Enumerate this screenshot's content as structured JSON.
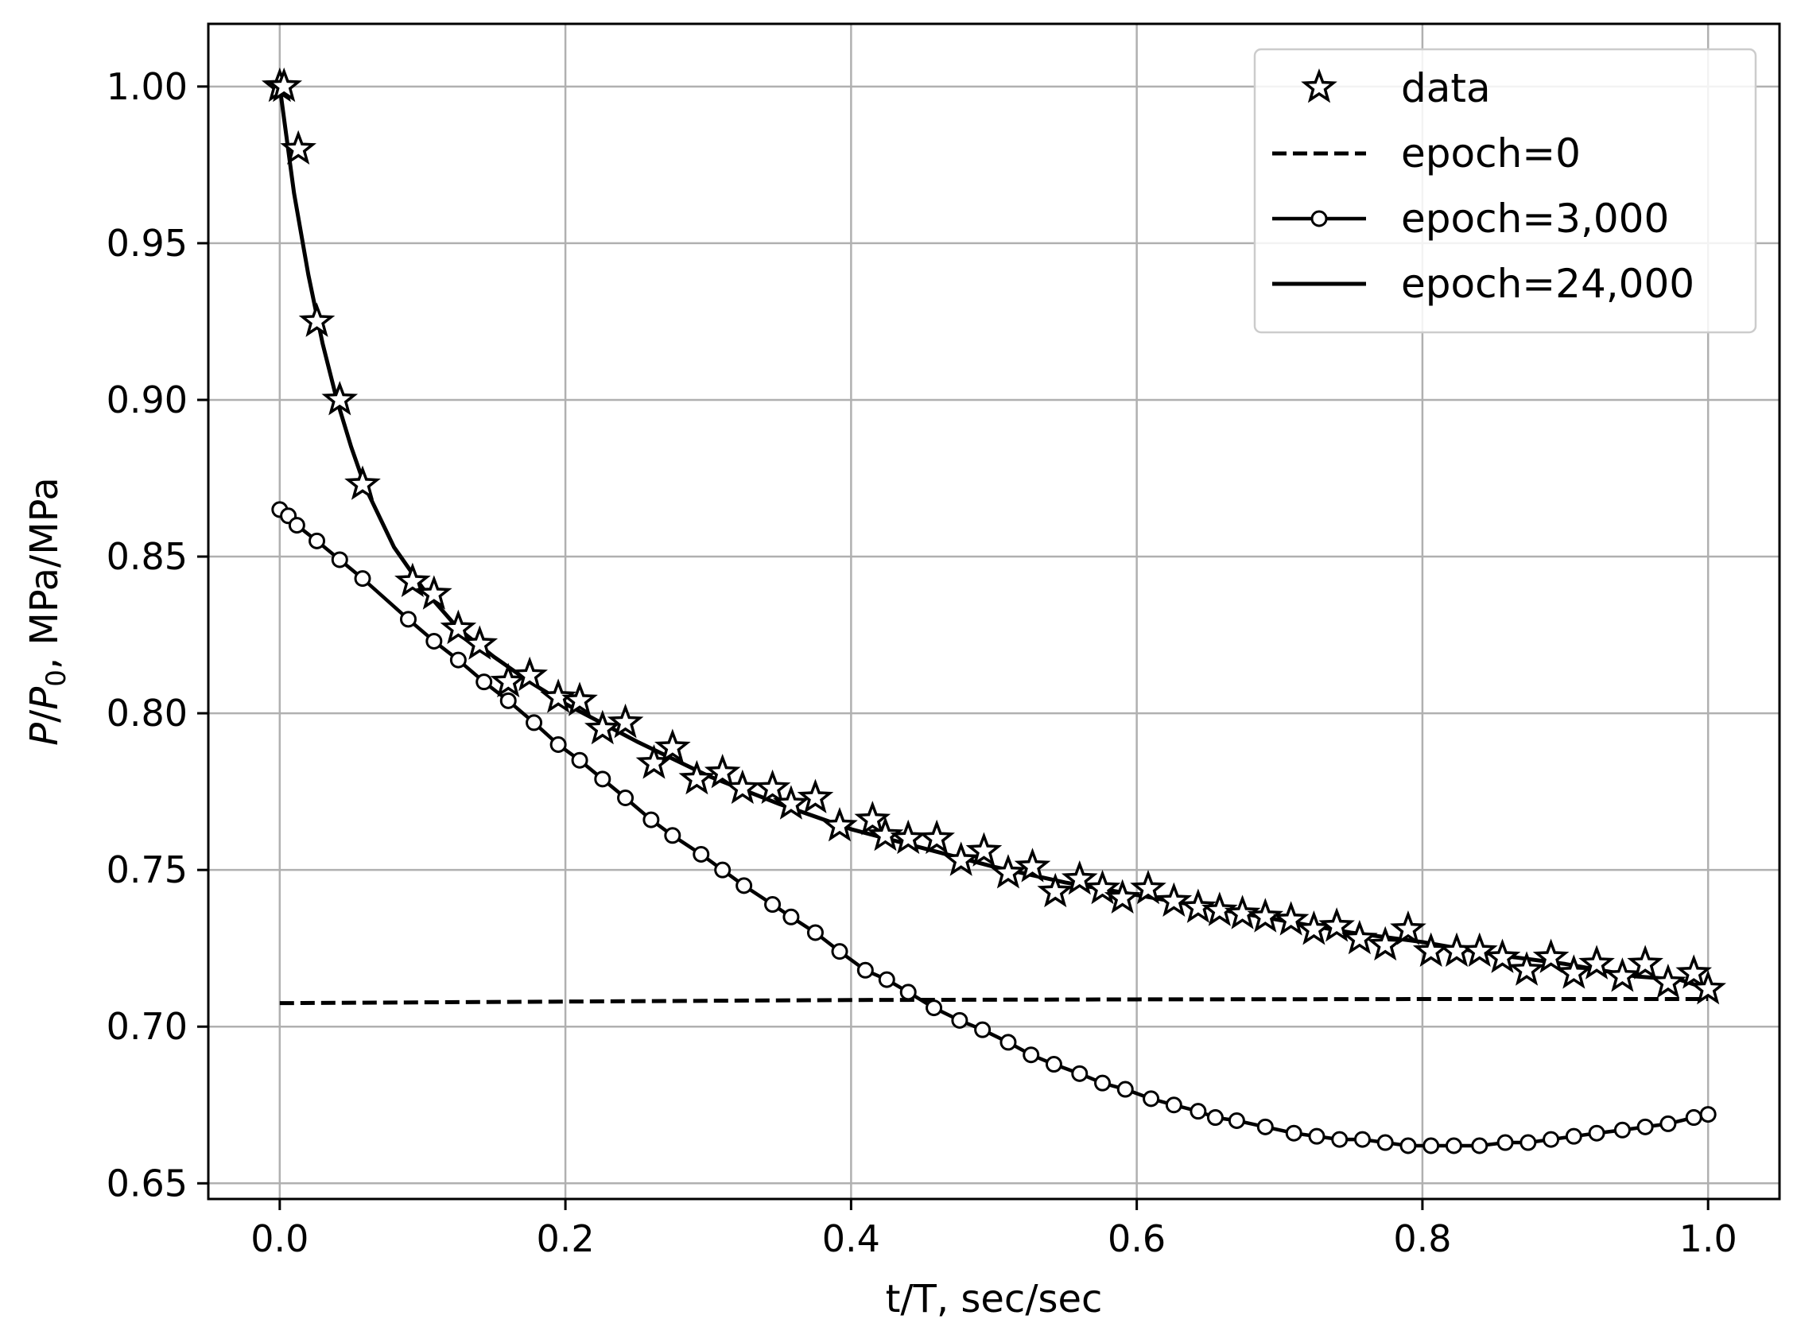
{
  "chart_data": {
    "type": "line",
    "title": "",
    "xlabel": "t/T, sec/sec",
    "ylabel": {
      "var": "P",
      "sep": "/",
      "den_var": "P",
      "den_sub": "0",
      "rest": ", MPa/MPa"
    },
    "xlim": [
      -0.05,
      1.05
    ],
    "ylim": [
      0.645,
      1.02
    ],
    "x_ticks": [
      0.0,
      0.2,
      0.4,
      0.6,
      0.8,
      1.0
    ],
    "x_tick_labels": [
      "0.0",
      "0.2",
      "0.4",
      "0.6",
      "0.8",
      "1.0"
    ],
    "y_ticks": [
      0.65,
      0.7,
      0.75,
      0.8,
      0.85,
      0.9,
      0.95,
      1.0
    ],
    "y_tick_labels": [
      "0.65",
      "0.70",
      "0.75",
      "0.80",
      "0.85",
      "0.90",
      "0.95",
      "1.00"
    ],
    "grid": true,
    "legend_position": "top-right",
    "series": [
      {
        "name": "data",
        "style": "markers",
        "marker": "star",
        "x": [
          0.0,
          0.003,
          0.013,
          0.026,
          0.042,
          0.058,
          0.093,
          0.108,
          0.125,
          0.14,
          0.16,
          0.175,
          0.195,
          0.21,
          0.226,
          0.242,
          0.262,
          0.275,
          0.292,
          0.31,
          0.324,
          0.345,
          0.358,
          0.375,
          0.392,
          0.415,
          0.424,
          0.44,
          0.46,
          0.477,
          0.493,
          0.51,
          0.527,
          0.543,
          0.56,
          0.576,
          0.59,
          0.608,
          0.626,
          0.643,
          0.658,
          0.674,
          0.69,
          0.708,
          0.724,
          0.74,
          0.756,
          0.774,
          0.79,
          0.806,
          0.824,
          0.84,
          0.856,
          0.873,
          0.89,
          0.906,
          0.922,
          0.94,
          0.956,
          0.972,
          0.99,
          1.0
        ],
        "y": [
          1.0,
          1.0,
          0.98,
          0.925,
          0.9,
          0.873,
          0.842,
          0.838,
          0.827,
          0.822,
          0.81,
          0.812,
          0.805,
          0.804,
          0.795,
          0.797,
          0.784,
          0.789,
          0.779,
          0.781,
          0.776,
          0.776,
          0.771,
          0.773,
          0.764,
          0.766,
          0.761,
          0.76,
          0.76,
          0.753,
          0.756,
          0.749,
          0.751,
          0.743,
          0.747,
          0.744,
          0.741,
          0.744,
          0.74,
          0.738,
          0.737,
          0.736,
          0.735,
          0.734,
          0.731,
          0.732,
          0.728,
          0.726,
          0.731,
          0.724,
          0.724,
          0.724,
          0.722,
          0.718,
          0.722,
          0.717,
          0.72,
          0.716,
          0.72,
          0.714,
          0.717,
          0.712
        ]
      },
      {
        "name": "epoch=0",
        "style": "dashed",
        "x": [
          0.0,
          0.2,
          0.4,
          0.6,
          0.8,
          1.0
        ],
        "y": [
          0.7075,
          0.708,
          0.7085,
          0.7087,
          0.7088,
          0.7088
        ]
      },
      {
        "name": "epoch=3,000",
        "style": "line-circles",
        "x": [
          0.0,
          0.006,
          0.012,
          0.026,
          0.042,
          0.058,
          0.09,
          0.108,
          0.125,
          0.143,
          0.16,
          0.178,
          0.195,
          0.21,
          0.226,
          0.242,
          0.26,
          0.275,
          0.295,
          0.31,
          0.325,
          0.345,
          0.358,
          0.375,
          0.392,
          0.41,
          0.425,
          0.44,
          0.458,
          0.476,
          0.492,
          0.51,
          0.526,
          0.542,
          0.56,
          0.576,
          0.592,
          0.61,
          0.626,
          0.643,
          0.655,
          0.67,
          0.69,
          0.71,
          0.726,
          0.742,
          0.758,
          0.774,
          0.79,
          0.806,
          0.822,
          0.84,
          0.858,
          0.874,
          0.89,
          0.906,
          0.922,
          0.94,
          0.956,
          0.972,
          0.99,
          1.0
        ],
        "y": [
          0.865,
          0.863,
          0.86,
          0.855,
          0.849,
          0.843,
          0.83,
          0.823,
          0.817,
          0.81,
          0.804,
          0.797,
          0.79,
          0.785,
          0.779,
          0.773,
          0.766,
          0.761,
          0.755,
          0.75,
          0.745,
          0.739,
          0.735,
          0.73,
          0.724,
          0.718,
          0.715,
          0.711,
          0.706,
          0.702,
          0.699,
          0.695,
          0.691,
          0.688,
          0.685,
          0.682,
          0.68,
          0.677,
          0.675,
          0.673,
          0.671,
          0.67,
          0.668,
          0.666,
          0.665,
          0.664,
          0.664,
          0.663,
          0.662,
          0.662,
          0.662,
          0.662,
          0.663,
          0.663,
          0.664,
          0.665,
          0.666,
          0.667,
          0.668,
          0.669,
          0.671,
          0.672
        ]
      },
      {
        "name": "epoch=24,000",
        "style": "solid",
        "x": [
          0.0,
          0.01,
          0.02,
          0.03,
          0.04,
          0.05,
          0.06,
          0.08,
          0.1,
          0.125,
          0.15,
          0.175,
          0.2,
          0.25,
          0.3,
          0.35,
          0.4,
          0.45,
          0.5,
          0.55,
          0.6,
          0.65,
          0.7,
          0.75,
          0.8,
          0.85,
          0.9,
          0.95,
          0.98,
          1.0
        ],
        "y": [
          1.0,
          0.966,
          0.94,
          0.918,
          0.9,
          0.885,
          0.872,
          0.853,
          0.84,
          0.827,
          0.818,
          0.81,
          0.803,
          0.791,
          0.78,
          0.771,
          0.763,
          0.757,
          0.751,
          0.746,
          0.742,
          0.738,
          0.734,
          0.73,
          0.727,
          0.723,
          0.72,
          0.716,
          0.715,
          0.712
        ]
      }
    ]
  }
}
